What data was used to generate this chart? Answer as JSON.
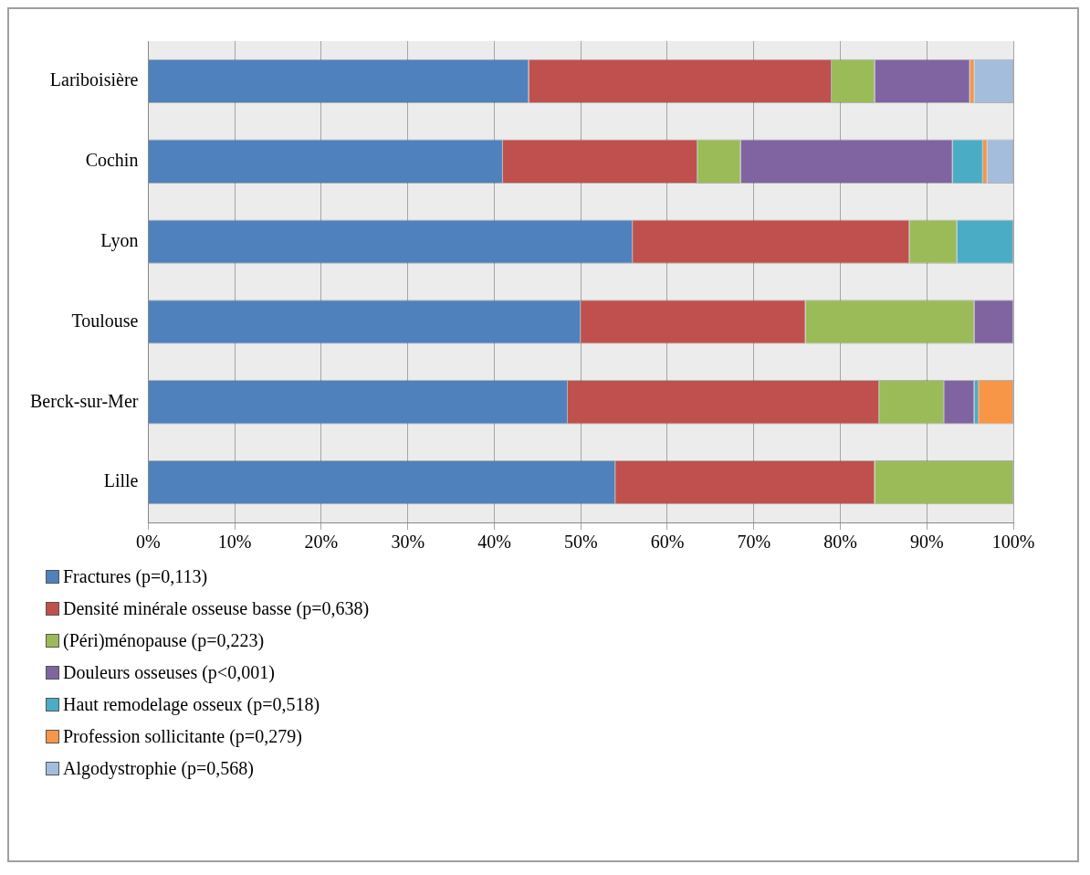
{
  "chart_data": {
    "type": "bar",
    "orientation": "horizontal",
    "stacked": true,
    "categories": [
      "Lariboisière",
      "Cochin",
      "Lyon",
      "Toulouse",
      "Berck-sur-Mer",
      "Lille"
    ],
    "series": [
      {
        "name": "Fractures (p=0,113)",
        "color": "#4f81bd",
        "values": [
          44,
          41,
          56,
          50,
          48.5,
          54
        ]
      },
      {
        "name": "Densité minérale osseuse basse (p=0,638)",
        "color": "#c0504d",
        "values": [
          35,
          22.5,
          32,
          26,
          36,
          30
        ]
      },
      {
        "name": "(Péri)ménopause (p=0,223)",
        "color": "#9bbb59",
        "values": [
          5,
          5,
          5.5,
          19.5,
          7.5,
          16
        ]
      },
      {
        "name": "Douleurs osseuses (p<0,001)",
        "color": "#8064a2",
        "values": [
          11,
          24.5,
          0,
          4.5,
          3.5,
          0
        ]
      },
      {
        "name": "Haut remodelage osseux (p=0,518)",
        "color": "#4bacc6",
        "values": [
          0,
          3.5,
          6.5,
          0,
          0.5,
          0
        ]
      },
      {
        "name": "Profession sollicitante (p=0,279)",
        "color": "#f79646",
        "values": [
          0.5,
          0.5,
          0,
          0,
          4,
          0
        ]
      },
      {
        "name": "Algodystrophie (p=0,568)",
        "color": "#a5bddc",
        "values": [
          4.5,
          3,
          0,
          0,
          0,
          0
        ]
      }
    ],
    "xlim": [
      0,
      100
    ],
    "xticks": [
      {
        "value": 0,
        "label": "0%"
      },
      {
        "value": 10,
        "label": "10%"
      },
      {
        "value": 20,
        "label": "20%"
      },
      {
        "value": 30,
        "label": "30%"
      },
      {
        "value": 40,
        "label": "40%"
      },
      {
        "value": 50,
        "label": "50%"
      },
      {
        "value": 60,
        "label": "60%"
      },
      {
        "value": 70,
        "label": "70%"
      },
      {
        "value": 80,
        "label": "80%"
      },
      {
        "value": 90,
        "label": "90%"
      },
      {
        "value": 100,
        "label": "100%"
      }
    ],
    "grid": "x",
    "legend": "bottom left"
  }
}
